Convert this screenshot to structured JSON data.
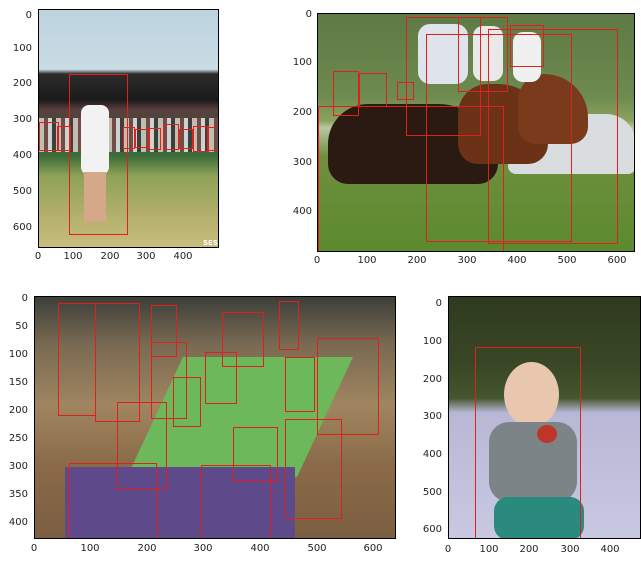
{
  "panels": [
    {
      "id": "tennis",
      "y_ticks": [
        "0",
        "100",
        "200",
        "300",
        "400",
        "500",
        "600"
      ],
      "x_ticks": [
        "0",
        "100",
        "200",
        "300",
        "400"
      ],
      "watermark": "SES",
      "box_color": "#e0201a"
    },
    {
      "id": "horses",
      "y_ticks": [
        "0",
        "100",
        "200",
        "300",
        "400"
      ],
      "x_ticks": [
        "0",
        "100",
        "200",
        "300",
        "400",
        "500",
        "600"
      ],
      "box_color": "#e0201a"
    },
    {
      "id": "party",
      "y_ticks": [
        "0",
        "50",
        "100",
        "150",
        "200",
        "250",
        "300",
        "350",
        "400"
      ],
      "x_ticks": [
        "0",
        "100",
        "200",
        "300",
        "400",
        "500",
        "600"
      ],
      "box_color": "#e0201a"
    },
    {
      "id": "baby",
      "y_ticks": [
        "0",
        "100",
        "200",
        "300",
        "400",
        "500",
        "600"
      ],
      "x_ticks": [
        "0",
        "100",
        "200",
        "300",
        "400"
      ],
      "box_color": "#e0201a"
    }
  ]
}
